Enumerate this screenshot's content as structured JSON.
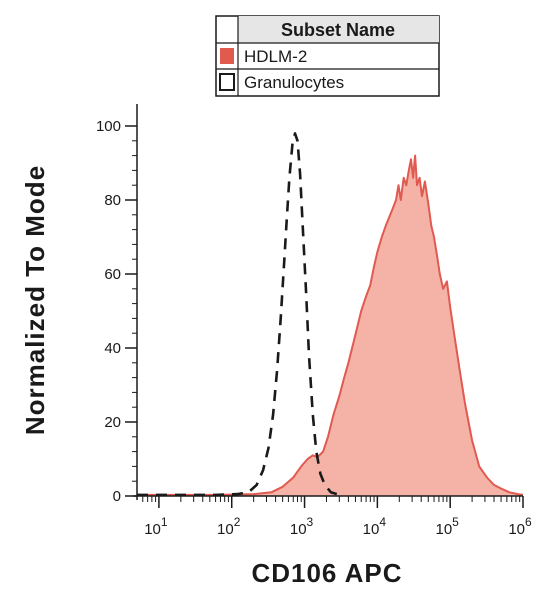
{
  "chart_data": {
    "type": "area",
    "xlabel": "CD106 APC",
    "ylabel": "Normalized To Mode",
    "x_scale": "log",
    "xlim": [
      5,
      1000000
    ],
    "ylim": [
      0,
      100
    ],
    "x_ticks": [
      {
        "value": 10,
        "base": "10",
        "exp": "1"
      },
      {
        "value": 100,
        "base": "10",
        "exp": "2"
      },
      {
        "value": 1000,
        "base": "10",
        "exp": "3"
      },
      {
        "value": 10000,
        "base": "10",
        "exp": "4"
      },
      {
        "value": 100000,
        "base": "10",
        "exp": "5"
      },
      {
        "value": 1000000,
        "base": "10",
        "exp": "6"
      }
    ],
    "y_ticks": [
      {
        "value": 0,
        "label": "0"
      },
      {
        "value": 20,
        "label": "20"
      },
      {
        "value": 40,
        "label": "40"
      },
      {
        "value": 60,
        "label": "60"
      },
      {
        "value": 80,
        "label": "80"
      },
      {
        "value": 100,
        "label": "100"
      }
    ],
    "legend": {
      "header": "Subset Name",
      "placement": "top-right"
    },
    "series": [
      {
        "name": "HDLM-2",
        "style": "filled",
        "fill_color": "#f5b3a8",
        "line_color": "#e05a50",
        "x": [
          5,
          60,
          200,
          350,
          500,
          700,
          900,
          1100,
          1300,
          1500,
          1800,
          2100,
          2500,
          3000,
          3500,
          4000,
          4500,
          5200,
          6000,
          7000,
          8000,
          9000,
          10000,
          11500,
          13000,
          15000,
          16500,
          18000,
          19500,
          21000,
          23000,
          25000,
          27000,
          29000,
          31000,
          33000,
          35000,
          38000,
          41000,
          45000,
          50000,
          55000,
          60000,
          66000,
          72000,
          80000,
          90000,
          100000,
          115000,
          135000,
          160000,
          200000,
          250000,
          320000,
          400000,
          500000,
          650000,
          850000,
          1000000
        ],
        "y": [
          0.3,
          0.3,
          0.5,
          1,
          2.5,
          5,
          8,
          10,
          11,
          10.5,
          12,
          16,
          22,
          27,
          32,
          36,
          40,
          45,
          50,
          54,
          57,
          62,
          66,
          70,
          73,
          76,
          78,
          80,
          84,
          80,
          86,
          84,
          88,
          91,
          86,
          92,
          84,
          86,
          81,
          85,
          79,
          73,
          70,
          65,
          60,
          56,
          58,
          51,
          43,
          34,
          25,
          15,
          8,
          5,
          3,
          2,
          1,
          0.5,
          0.3
        ]
      },
      {
        "name": "Granulocytes",
        "style": "dashed",
        "line_color": "#1a1a1a",
        "x": [
          5,
          60,
          120,
          170,
          220,
          270,
          320,
          370,
          420,
          470,
          520,
          570,
          620,
          680,
          740,
          800,
          870,
          950,
          1050,
          1150,
          1300,
          1450,
          1650,
          1900,
          2300,
          3000
        ],
        "y": [
          0.3,
          0.3,
          0.5,
          1,
          3,
          7,
          13,
          22,
          34,
          48,
          62,
          75,
          86,
          95,
          98,
          96,
          87,
          72,
          55,
          38,
          22,
          12,
          6,
          3,
          1,
          0.3
        ]
      }
    ]
  }
}
